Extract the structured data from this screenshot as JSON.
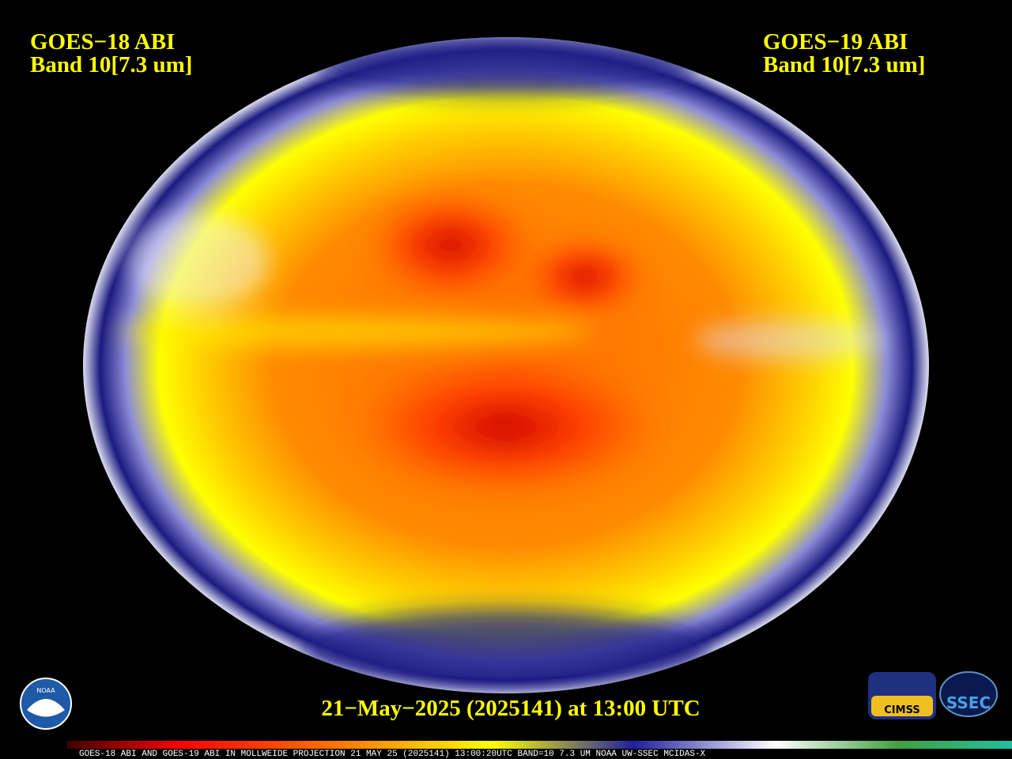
{
  "header": {
    "left": [
      "GOES−18 ABI",
      "Band 10[7.3 um]"
    ],
    "right": [
      "GOES−19 ABI",
      "Band 10[7.3 um]"
    ]
  },
  "timestamp": "21−May−2025 (2025141) at 13:00 UTC",
  "colorbar_caption": "GOES-18 ABI AND GOES-19 ABI IN MOLLWEIDE PROJECTION 21 MAY 25 (2025141) 13:00:20UTC BAND=10 7.3 UM NOAA UW-SSEC MCIDAS-X",
  "logos": {
    "noaa": "NOAA",
    "cimss": "CIMSS",
    "ssec": "SSEC"
  }
}
